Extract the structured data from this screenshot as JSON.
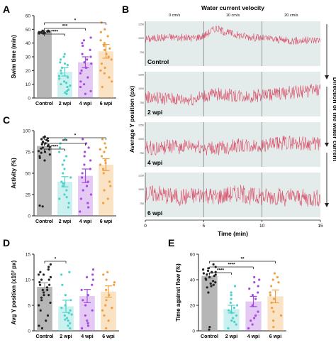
{
  "colors": {
    "control": "#9e9e9e",
    "wpi2": "#4fd1c9",
    "wpi4": "#a64bdc",
    "wpi6": "#f0a040",
    "trace": "#d9506a",
    "trace_bg": "#e3eceb"
  },
  "panels": {
    "A": {
      "letter": "A"
    },
    "B": {
      "letter": "B"
    },
    "C": {
      "letter": "C"
    },
    "D": {
      "letter": "D"
    },
    "E": {
      "letter": "E"
    }
  },
  "chart_data": [
    {
      "id": "A",
      "type": "bar",
      "ylabel": "Swim time (min)",
      "ylim": [
        0,
        60
      ],
      "yticks": [
        0,
        10,
        20,
        30,
        40,
        50,
        60
      ],
      "categories": [
        "Control",
        "2 wpi",
        "4 wpi",
        "6 wpi"
      ],
      "means": [
        48,
        19,
        26,
        34
      ],
      "sem": [
        1,
        3,
        4,
        5
      ],
      "points": [
        [
          48,
          47.5,
          48.5,
          49,
          47,
          48,
          48.5,
          47.5,
          49,
          48,
          47,
          48.5
        ],
        [
          8,
          10,
          12,
          14,
          15,
          18,
          20,
          22,
          24,
          25,
          28,
          30,
          32,
          6,
          5,
          4,
          3,
          9,
          16,
          26,
          11
        ],
        [
          5,
          8,
          12,
          15,
          18,
          20,
          22,
          25,
          28,
          30,
          32,
          35,
          38,
          40,
          42,
          44,
          10,
          3,
          26
        ],
        [
          8,
          12,
          15,
          18,
          22,
          25,
          28,
          30,
          32,
          35,
          38,
          40,
          42,
          45,
          48,
          50,
          55,
          20,
          36
        ]
      ],
      "significance": [
        {
          "from": 0,
          "to": 1,
          "label": "****"
        },
        {
          "from": 0,
          "to": 2,
          "label": "***"
        },
        {
          "from": 0,
          "to": 3,
          "label": "*"
        }
      ]
    },
    {
      "id": "B",
      "type": "line",
      "title": "Water current velocity",
      "velocity_labels": [
        "0 cm/s",
        "10 cm/s",
        "20 cm/s"
      ],
      "xlabel": "Time (min)",
      "ylabel": "Average Y position (px)",
      "right_label": "Direction of the water current",
      "xlim": [
        0,
        15
      ],
      "xticks": [
        0,
        5,
        10,
        15
      ],
      "dividers": [
        5,
        10
      ],
      "row_ylim": [
        500,
        1300
      ],
      "row_yticks": [
        750,
        1000,
        1250
      ],
      "rows": [
        {
          "label": "Control",
          "trend": [
            980,
            1000,
            1020,
            1010,
            1000,
            1040,
            1180,
            1100,
            1050,
            1020,
            1000,
            980,
            960,
            950,
            960,
            970
          ],
          "noise": 70
        },
        {
          "label": "2 wpi",
          "trend": [
            850,
            830,
            820,
            800,
            810,
            860,
            900,
            880,
            870,
            860,
            880,
            900,
            920,
            940,
            960,
            980
          ],
          "noise": 120
        },
        {
          "label": "4 wpi",
          "trend": [
            840,
            830,
            860,
            850,
            870,
            840,
            820,
            850,
            880,
            860,
            890,
            900,
            940,
            930,
            920,
            910
          ],
          "noise": 130
        },
        {
          "label": "6 wpi",
          "trend": [
            900,
            930,
            880,
            860,
            880,
            920,
            860,
            900,
            930,
            880,
            860,
            880,
            850,
            860,
            840,
            850
          ],
          "noise": 160
        }
      ]
    },
    {
      "id": "C",
      "type": "bar",
      "ylabel": "Activity (%)",
      "ylim": [
        0,
        100
      ],
      "yticks": [
        0,
        25,
        50,
        75,
        100
      ],
      "categories": [
        "Control",
        "2 wpi",
        "4 wpi",
        "6 wpi"
      ],
      "means": [
        82,
        40,
        47,
        60
      ],
      "sem": [
        4,
        6,
        8,
        7
      ],
      "points": [
        [
          75,
          78,
          80,
          82,
          84,
          86,
          88,
          90,
          92,
          76,
          79,
          81,
          83,
          85,
          87,
          89,
          91,
          70,
          72,
          74,
          93,
          12,
          11,
          68,
          65
        ],
        [
          10,
          15,
          20,
          25,
          30,
          35,
          40,
          45,
          50,
          55,
          60,
          65,
          70,
          75,
          80,
          85,
          90,
          22,
          38
        ],
        [
          5,
          10,
          15,
          20,
          25,
          30,
          35,
          40,
          50,
          55,
          60,
          65,
          70,
          75,
          80,
          85,
          90,
          45
        ],
        [
          15,
          20,
          30,
          40,
          50,
          55,
          60,
          65,
          70,
          75,
          80,
          85,
          90,
          35,
          62,
          78
        ]
      ],
      "significance": [
        {
          "from": 0,
          "to": 1,
          "label": "****"
        },
        {
          "from": 0,
          "to": 2,
          "label": "***"
        },
        {
          "from": 0,
          "to": 3,
          "label": "*"
        }
      ]
    },
    {
      "id": "D",
      "type": "bar",
      "ylabel": "Avg Y position (x10² px)",
      "ylim": [
        0,
        15
      ],
      "yticks": [
        0,
        5,
        10,
        15
      ],
      "categories": [
        "Control",
        "2 wpi",
        "4 wpi",
        "6 wpi"
      ],
      "means": [
        8.6,
        4.8,
        6.8,
        7.7
      ],
      "sem": [
        0.8,
        1.2,
        1.3,
        1.1
      ],
      "points": [
        [
          2,
          3,
          4,
          5,
          6,
          7,
          8,
          9,
          10,
          11,
          12,
          13,
          7.5,
          8.5,
          9.5,
          10.5,
          6.5,
          5.5,
          11.5,
          12.5,
          1,
          0.5,
          9,
          8,
          10,
          7,
          11
        ],
        [
          0.5,
          1,
          1.5,
          2,
          2.5,
          3,
          3.5,
          4,
          4.5,
          5,
          6,
          7,
          9,
          11,
          11.5,
          2.2,
          3.2
        ],
        [
          0.5,
          1,
          2,
          3,
          4,
          5,
          6,
          7,
          8,
          9,
          10,
          11,
          12,
          1.5,
          10.5
        ],
        [
          0.5,
          2,
          3,
          4,
          5,
          6,
          7,
          8,
          9,
          10,
          11,
          11.5,
          4.5,
          9.5
        ]
      ],
      "significance": [
        {
          "from": 0,
          "to": 1,
          "label": "*"
        }
      ]
    },
    {
      "id": "E",
      "type": "bar",
      "ylabel": "Time against flow (%)",
      "ylim": [
        0,
        60
      ],
      "yticks": [
        0,
        20,
        40,
        60
      ],
      "categories": [
        "Control",
        "2 wpi",
        "4 wpi",
        "6 wpi"
      ],
      "means": [
        43,
        17,
        23,
        27
      ],
      "sem": [
        2,
        3,
        4,
        5
      ],
      "points": [
        [
          35,
          37,
          38,
          40,
          41,
          42,
          43,
          44,
          45,
          46,
          47,
          48,
          50,
          52,
          39,
          44,
          46,
          36,
          34,
          49,
          3,
          1,
          30
        ],
        [
          5,
          8,
          10,
          12,
          14,
          15,
          16,
          18,
          20,
          22,
          25,
          30,
          35,
          2,
          28,
          7
        ],
        [
          2,
          5,
          8,
          10,
          15,
          20,
          25,
          28,
          30,
          35,
          38,
          40,
          42,
          12,
          33
        ],
        [
          3,
          8,
          12,
          18,
          22,
          25,
          30,
          35,
          38,
          40,
          42,
          45,
          15,
          28
        ]
      ],
      "significance": [
        {
          "from": 0,
          "to": 1,
          "label": "****"
        },
        {
          "from": 0,
          "to": 2,
          "label": "****"
        },
        {
          "from": 0,
          "to": 3,
          "label": "**"
        }
      ]
    }
  ]
}
